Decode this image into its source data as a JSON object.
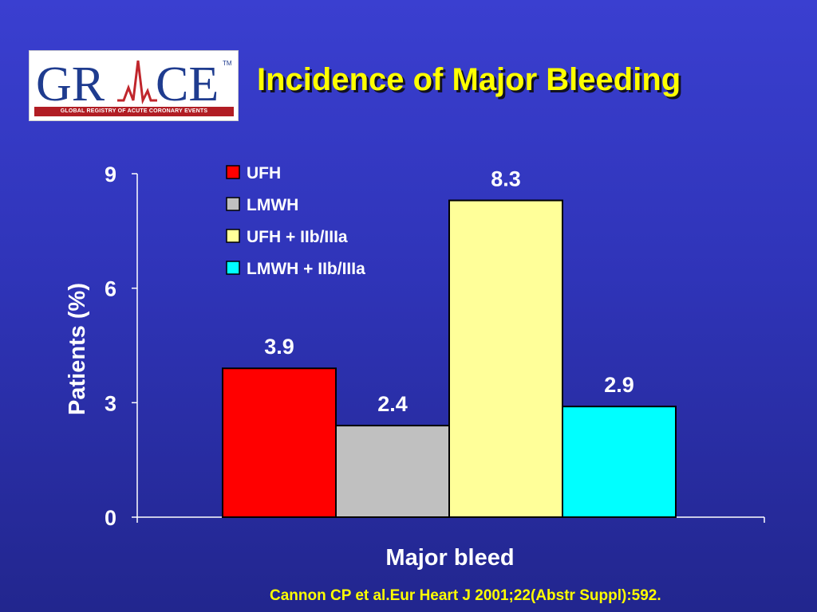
{
  "logo": {
    "wordmark_left": "GR",
    "wordmark_right": "CE",
    "trademark": "TM",
    "tagline": "GLOBAL REGISTRY OF ACUTE CORONARY EVENTS"
  },
  "title": "Incidence of Major Bleeding",
  "citation": "Cannon CP et al.Eur Heart J 2001;22(Abstr Suppl):592.",
  "colors": {
    "background": "#3035c0",
    "title": "#ffff00",
    "text": "#ffffff"
  },
  "chart_data": {
    "type": "bar",
    "categories": [
      "Major bleed"
    ],
    "xlabel": "Major bleed",
    "ylabel": "Patients (%)",
    "ylim": [
      0,
      9
    ],
    "yticks": [
      "0",
      "3",
      "6",
      "9"
    ],
    "grid": false,
    "legend_position": "top-left",
    "series": [
      {
        "name": "UFH",
        "values": [
          3.9
        ],
        "label": "3.9",
        "color": "#ff0000"
      },
      {
        "name": "LMWH",
        "values": [
          2.4
        ],
        "label": "2.4",
        "color": "#c0c0c0"
      },
      {
        "name": "UFH + IIb/IIIa",
        "values": [
          8.3
        ],
        "label": "8.3",
        "color": "#ffff99"
      },
      {
        "name": "LMWH + IIb/IIIa",
        "values": [
          2.9
        ],
        "label": "2.9",
        "color": "#00ffff"
      }
    ]
  }
}
